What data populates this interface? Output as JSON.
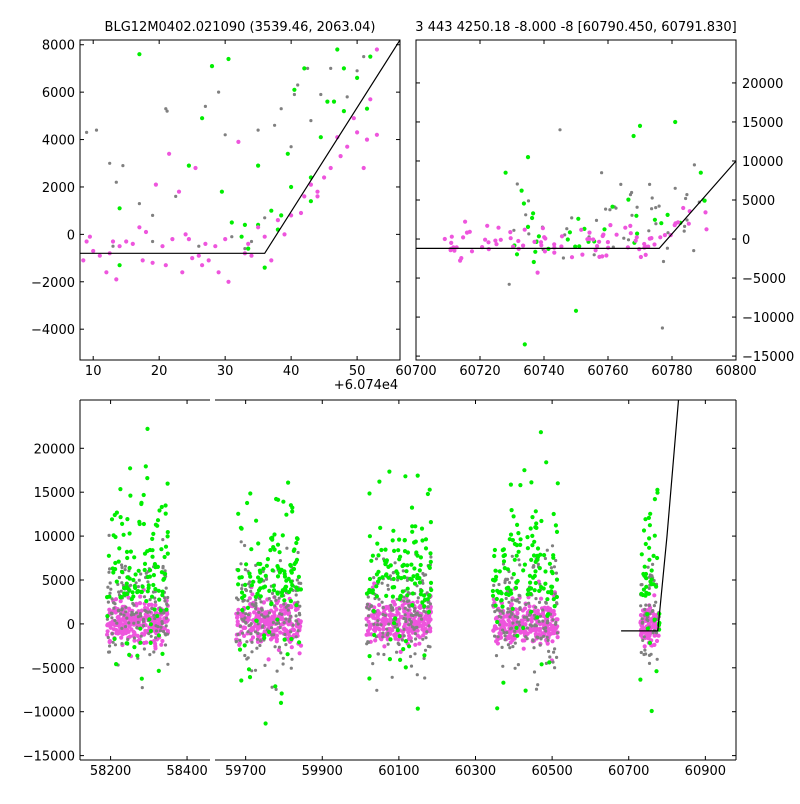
{
  "colors": {
    "gray": "#808080",
    "green": "#00ee00",
    "magenta": "#ee55dd",
    "model": "#000000"
  },
  "chart_data": [
    {
      "id": "top-left",
      "type": "scatter",
      "title": "BLG12M0402.021090 (3539.46, 2063.04)",
      "xlim": [
        8,
        56.5
      ],
      "ylim": [
        -5300,
        8200
      ],
      "xticks": [
        10,
        20,
        30,
        40,
        50
      ],
      "yticks": [
        -4000,
        -2000,
        0,
        2000,
        4000,
        6000,
        8000
      ],
      "yaxis": "left",
      "grid": false,
      "model": [
        [
          8,
          -800
        ],
        [
          36,
          -800
        ],
        [
          56.5,
          8200
        ]
      ],
      "seed": 1,
      "series": [
        {
          "color": "gray",
          "points": [
            [
              9,
              4300
            ],
            [
              10.5,
              4400
            ],
            [
              12.5,
              3000
            ],
            [
              14.5,
              2900
            ],
            [
              13.5,
              2200
            ],
            [
              17,
              1300
            ],
            [
              19,
              800
            ],
            [
              21,
              5300
            ],
            [
              21.2,
              5200
            ],
            [
              22.5,
              1600
            ],
            [
              24.5,
              2900
            ],
            [
              25.5,
              2800
            ],
            [
              27,
              5400
            ],
            [
              28,
              7100
            ],
            [
              29,
              6000
            ],
            [
              30,
              4200
            ],
            [
              35,
              4400
            ],
            [
              36,
              700
            ],
            [
              37.5,
              4600
            ],
            [
              38.5,
              5300
            ],
            [
              40,
              3700
            ],
            [
              40.5,
              5900
            ],
            [
              41,
              6300
            ],
            [
              42.5,
              7000
            ],
            [
              43,
              4800
            ],
            [
              44.5,
              5900
            ],
            [
              46,
              7000
            ],
            [
              48.5,
              5800
            ],
            [
              50,
              6900
            ],
            [
              51,
              7500
            ],
            [
              52,
              5700
            ],
            [
              13,
              -500
            ],
            [
              19,
              -300
            ],
            [
              26,
              -500
            ],
            [
              33,
              -600
            ],
            [
              31,
              -100
            ],
            [
              34,
              -300
            ]
          ]
        },
        {
          "color": "green",
          "points": [
            [
              17,
              7600
            ],
            [
              14,
              1100
            ],
            [
              14,
              -1300
            ],
            [
              24.5,
              2900
            ],
            [
              26.5,
              4900
            ],
            [
              28,
              7100
            ],
            [
              30.5,
              7400
            ],
            [
              29.5,
              1800
            ],
            [
              31,
              500
            ],
            [
              32.5,
              -100
            ],
            [
              33.5,
              -600
            ],
            [
              35,
              2900
            ],
            [
              36,
              -1400
            ],
            [
              37,
              1000
            ],
            [
              38,
              200
            ],
            [
              38.5,
              800
            ],
            [
              39.5,
              3400
            ],
            [
              40,
              2000
            ],
            [
              40.5,
              6100
            ],
            [
              42,
              7000
            ],
            [
              43,
              2400
            ],
            [
              43,
              1400
            ],
            [
              44.5,
              4100
            ],
            [
              45.5,
              5600
            ],
            [
              46.5,
              5600
            ],
            [
              47,
              7800
            ],
            [
              48,
              7000
            ],
            [
              48,
              5200
            ],
            [
              50,
              6600
            ],
            [
              51.5,
              5300
            ],
            [
              52,
              7500
            ],
            [
              33,
              400
            ],
            [
              35,
              400
            ]
          ]
        },
        {
          "color": "magenta",
          "points": [
            [
              8.5,
              -1100
            ],
            [
              9,
              -300
            ],
            [
              9.5,
              -100
            ],
            [
              10,
              -700
            ],
            [
              11,
              -900
            ],
            [
              12,
              -1600
            ],
            [
              12.5,
              -800
            ],
            [
              13,
              -300
            ],
            [
              13.5,
              -1900
            ],
            [
              14,
              -500
            ],
            [
              15,
              -300
            ],
            [
              16,
              -400
            ],
            [
              17,
              300
            ],
            [
              17.5,
              -1100
            ],
            [
              18,
              100
            ],
            [
              19,
              -1200
            ],
            [
              19.5,
              2100
            ],
            [
              20.5,
              -500
            ],
            [
              21,
              -1300
            ],
            [
              21.5,
              3400
            ],
            [
              22,
              -200
            ],
            [
              23,
              1800
            ],
            [
              23.5,
              -1600
            ],
            [
              24,
              0
            ],
            [
              24.5,
              -200
            ],
            [
              25,
              -1000
            ],
            [
              25.5,
              2800
            ],
            [
              26,
              -900
            ],
            [
              26.5,
              -1300
            ],
            [
              27,
              -400
            ],
            [
              27.5,
              -1100
            ],
            [
              28.5,
              -500
            ],
            [
              29,
              -1600
            ],
            [
              30,
              -200
            ],
            [
              30.5,
              -2000
            ],
            [
              32,
              3900
            ],
            [
              33,
              -800
            ],
            [
              33.5,
              -400
            ],
            [
              34,
              -900
            ],
            [
              35,
              300
            ],
            [
              36,
              -100
            ],
            [
              37,
              -1100
            ],
            [
              38,
              600
            ],
            [
              39,
              0
            ],
            [
              40,
              800
            ],
            [
              41.5,
              900
            ],
            [
              42,
              1600
            ],
            [
              43,
              2100
            ],
            [
              44,
              1600
            ],
            [
              44,
              1800
            ],
            [
              45,
              2400
            ],
            [
              46,
              2800
            ],
            [
              47,
              4100
            ],
            [
              47.5,
              3300
            ],
            [
              48.5,
              3700
            ],
            [
              49.5,
              4900
            ],
            [
              50,
              4300
            ],
            [
              51,
              2800
            ],
            [
              51.5,
              4000
            ],
            [
              52,
              5700
            ],
            [
              53,
              4200
            ],
            [
              53,
              7800
            ]
          ]
        }
      ]
    },
    {
      "id": "top-right",
      "type": "scatter",
      "title": "3 443 4250.18 -8.000 -8 [60790.450, 60791.830]",
      "xlim": [
        60700,
        60800
      ],
      "ylim": [
        -15500,
        25500
      ],
      "xticks": [
        60700,
        60720,
        60740,
        60760,
        60780,
        60800
      ],
      "yticks": [
        -15000,
        -10000,
        -5000,
        0,
        5000,
        10000,
        15000,
        20000
      ],
      "yaxis": "right",
      "grid": false,
      "model": [
        [
          60700,
          -1200
        ],
        [
          60776,
          -1200
        ],
        [
          60800,
          10000
        ]
      ],
      "seed": 2,
      "cluster": [
        {
          "color": "gray",
          "n": 45,
          "x": [
            60728,
            60792
          ],
          "yMean": 1800,
          "ySpread": 2600
        },
        {
          "color": "green",
          "n": 30,
          "x": [
            60728,
            60792
          ],
          "yMean": 900,
          "ySpread": 2400
        },
        {
          "color": "magenta",
          "n": 85,
          "x": [
            60709,
            60792
          ],
          "yMean": -300,
          "ySpread": 1100
        }
      ],
      "series": [
        {
          "color": "gray",
          "points": [
            [
              60745,
              14000
            ],
            [
              60758,
              8500
            ],
            [
              60764,
              7000
            ],
            [
              60773,
              7000
            ],
            [
              60777,
              -11400
            ],
            [
              60787,
              9500
            ],
            [
              60781,
              6500
            ]
          ]
        },
        {
          "color": "green",
          "points": [
            [
              60728,
              8500
            ],
            [
              60733,
              6200
            ],
            [
              60735,
              10500
            ],
            [
              60750,
              -9200
            ],
            [
              60734,
              -13500
            ],
            [
              60768,
              13200
            ],
            [
              60770,
              14500
            ],
            [
              60781,
              15000
            ],
            [
              60789,
              8500
            ]
          ]
        },
        {
          "color": "magenta",
          "points": [
            [
              60709,
              0
            ],
            [
              60711,
              -500
            ],
            [
              60712,
              -1500
            ],
            [
              60738,
              -4300
            ],
            [
              60752,
              -2000
            ]
          ]
        }
      ]
    },
    {
      "id": "bottom",
      "type": "scatter",
      "title": "",
      "offset_label": "+6.074e4",
      "ylim": [
        -15500,
        25500
      ],
      "yticks": [
        -15000,
        -10000,
        -5000,
        0,
        5000,
        10000,
        15000,
        20000
      ],
      "xticklabels": [
        "58200",
        "58400",
        "59700",
        "59900",
        "60100",
        "60300",
        "60500",
        "60700",
        "60900"
      ],
      "yaxis": "left",
      "grid": false,
      "seed": 3,
      "segments": [
        {
          "xlim": [
            58120,
            58460
          ],
          "xticks": [
            58200,
            58400
          ],
          "clusters": [
            {
              "center": 58270,
              "halfWidth": 80
            }
          ]
        },
        {
          "xlim": [
            59620,
            60980
          ],
          "xticks": [
            59700,
            59900,
            60100,
            60300,
            60500,
            60700,
            60900
          ],
          "clusters": [
            {
              "center": 59760,
              "halfWidth": 85
            },
            {
              "center": 60100,
              "halfWidth": 85
            },
            {
              "center": 60430,
              "halfWidth": 85
            },
            {
              "center": 60755,
              "halfWidth": 25
            }
          ]
        }
      ],
      "model": [
        [
          60680,
          -800
        ],
        [
          60776,
          -800
        ],
        [
          60800,
          10000
        ],
        [
          60830,
          25500
        ]
      ]
    }
  ]
}
